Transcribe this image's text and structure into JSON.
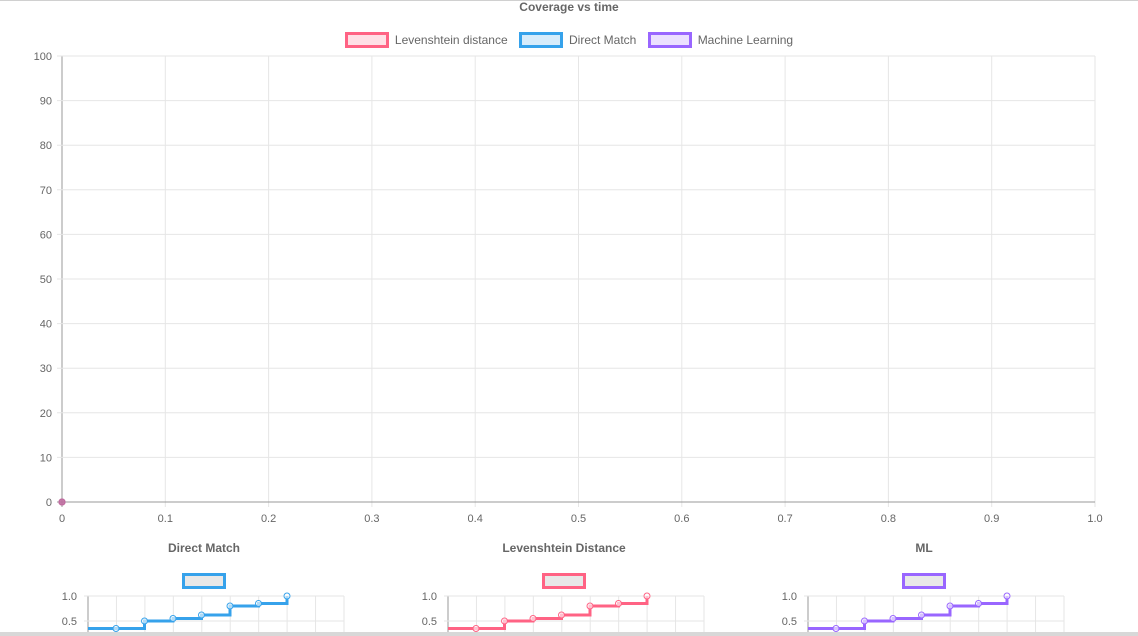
{
  "main": {
    "title": "Coverage vs time",
    "legend": [
      {
        "label": "Levenshtein distance",
        "border": "#ff6384",
        "fill": "#ffe0e6"
      },
      {
        "label": "Direct Match",
        "border": "#36a2eb",
        "fill": "#d7ecfb"
      },
      {
        "label": "Machine Learning",
        "border": "#9966ff",
        "fill": "#ebe0ff"
      }
    ],
    "point_color": "#c06ca0"
  },
  "chart_data": [
    {
      "type": "line",
      "title": "Coverage vs time",
      "x_ticks": [
        "0",
        "0.1",
        "0.2",
        "0.3",
        "0.4",
        "0.5",
        "0.6",
        "0.7",
        "0.8",
        "0.9",
        "1.0"
      ],
      "y_ticks": [
        "0",
        "10",
        "20",
        "30",
        "40",
        "50",
        "60",
        "70",
        "80",
        "90",
        "100"
      ],
      "xlim": [
        0,
        1
      ],
      "ylim": [
        0,
        100
      ],
      "grid": true,
      "legend_position": "top",
      "series": [
        {
          "name": "Levenshtein distance",
          "points": [
            [
              0,
              0
            ]
          ]
        },
        {
          "name": "Direct Match",
          "points": [
            [
              0,
              0
            ]
          ]
        },
        {
          "name": "Machine Learning",
          "points": [
            [
              0,
              0
            ]
          ]
        }
      ]
    },
    {
      "type": "line",
      "title": "Direct Match",
      "color": "#36a2eb",
      "y_ticks": [
        "0.5",
        "1.0"
      ],
      "ylim": [
        0,
        1
      ],
      "values": [
        0.35,
        0.5,
        0.55,
        0.62,
        0.8,
        0.85,
        1.0
      ],
      "grid": true
    },
    {
      "type": "line",
      "title": "Levenshtein Distance",
      "color": "#ff6384",
      "y_ticks": [
        "0.5",
        "1.0"
      ],
      "ylim": [
        0,
        1
      ],
      "values": [
        0.35,
        0.5,
        0.55,
        0.62,
        0.8,
        0.85,
        1.0
      ],
      "grid": true
    },
    {
      "type": "line",
      "title": "ML",
      "color": "#9966ff",
      "y_ticks": [
        "0.5",
        "1.0"
      ],
      "ylim": [
        0,
        1
      ],
      "values": [
        0.35,
        0.5,
        0.55,
        0.62,
        0.8,
        0.85,
        1.0
      ],
      "grid": true
    }
  ]
}
